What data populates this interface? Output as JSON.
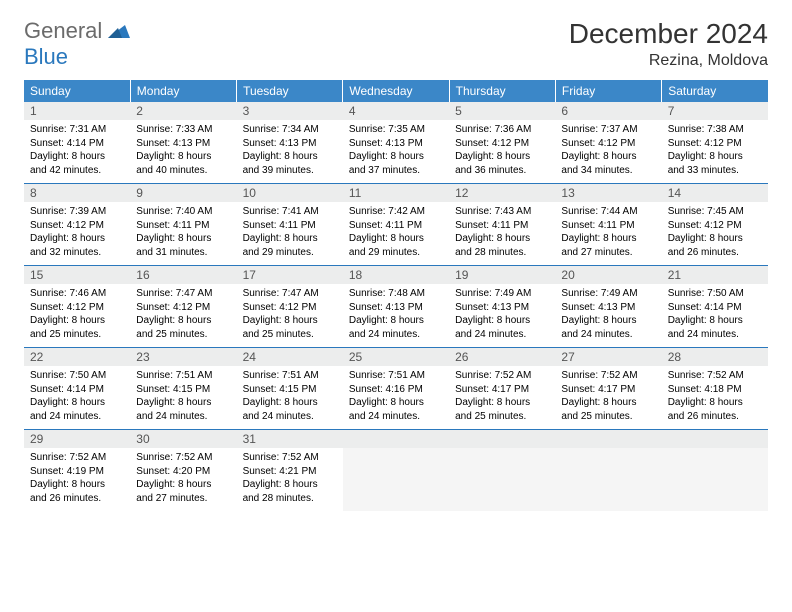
{
  "logo": {
    "general": "General",
    "blue": "Blue"
  },
  "title": "December 2024",
  "location": "Rezina, Moldova",
  "weekdays": [
    "Sunday",
    "Monday",
    "Tuesday",
    "Wednesday",
    "Thursday",
    "Friday",
    "Saturday"
  ],
  "colors": {
    "header_bg": "#3b87c8",
    "header_text": "#ffffff",
    "daynum_bg": "#eceded",
    "divider": "#2a78bd",
    "logo_gray": "#6b6b6b",
    "logo_blue": "#2a78bd"
  },
  "weeks": [
    [
      {
        "day": "1",
        "sunrise": "Sunrise: 7:31 AM",
        "sunset": "Sunset: 4:14 PM",
        "daylight": "Daylight: 8 hours and 42 minutes."
      },
      {
        "day": "2",
        "sunrise": "Sunrise: 7:33 AM",
        "sunset": "Sunset: 4:13 PM",
        "daylight": "Daylight: 8 hours and 40 minutes."
      },
      {
        "day": "3",
        "sunrise": "Sunrise: 7:34 AM",
        "sunset": "Sunset: 4:13 PM",
        "daylight": "Daylight: 8 hours and 39 minutes."
      },
      {
        "day": "4",
        "sunrise": "Sunrise: 7:35 AM",
        "sunset": "Sunset: 4:13 PM",
        "daylight": "Daylight: 8 hours and 37 minutes."
      },
      {
        "day": "5",
        "sunrise": "Sunrise: 7:36 AM",
        "sunset": "Sunset: 4:12 PM",
        "daylight": "Daylight: 8 hours and 36 minutes."
      },
      {
        "day": "6",
        "sunrise": "Sunrise: 7:37 AM",
        "sunset": "Sunset: 4:12 PM",
        "daylight": "Daylight: 8 hours and 34 minutes."
      },
      {
        "day": "7",
        "sunrise": "Sunrise: 7:38 AM",
        "sunset": "Sunset: 4:12 PM",
        "daylight": "Daylight: 8 hours and 33 minutes."
      }
    ],
    [
      {
        "day": "8",
        "sunrise": "Sunrise: 7:39 AM",
        "sunset": "Sunset: 4:12 PM",
        "daylight": "Daylight: 8 hours and 32 minutes."
      },
      {
        "day": "9",
        "sunrise": "Sunrise: 7:40 AM",
        "sunset": "Sunset: 4:11 PM",
        "daylight": "Daylight: 8 hours and 31 minutes."
      },
      {
        "day": "10",
        "sunrise": "Sunrise: 7:41 AM",
        "sunset": "Sunset: 4:11 PM",
        "daylight": "Daylight: 8 hours and 29 minutes."
      },
      {
        "day": "11",
        "sunrise": "Sunrise: 7:42 AM",
        "sunset": "Sunset: 4:11 PM",
        "daylight": "Daylight: 8 hours and 29 minutes."
      },
      {
        "day": "12",
        "sunrise": "Sunrise: 7:43 AM",
        "sunset": "Sunset: 4:11 PM",
        "daylight": "Daylight: 8 hours and 28 minutes."
      },
      {
        "day": "13",
        "sunrise": "Sunrise: 7:44 AM",
        "sunset": "Sunset: 4:11 PM",
        "daylight": "Daylight: 8 hours and 27 minutes."
      },
      {
        "day": "14",
        "sunrise": "Sunrise: 7:45 AM",
        "sunset": "Sunset: 4:12 PM",
        "daylight": "Daylight: 8 hours and 26 minutes."
      }
    ],
    [
      {
        "day": "15",
        "sunrise": "Sunrise: 7:46 AM",
        "sunset": "Sunset: 4:12 PM",
        "daylight": "Daylight: 8 hours and 25 minutes."
      },
      {
        "day": "16",
        "sunrise": "Sunrise: 7:47 AM",
        "sunset": "Sunset: 4:12 PM",
        "daylight": "Daylight: 8 hours and 25 minutes."
      },
      {
        "day": "17",
        "sunrise": "Sunrise: 7:47 AM",
        "sunset": "Sunset: 4:12 PM",
        "daylight": "Daylight: 8 hours and 25 minutes."
      },
      {
        "day": "18",
        "sunrise": "Sunrise: 7:48 AM",
        "sunset": "Sunset: 4:13 PM",
        "daylight": "Daylight: 8 hours and 24 minutes."
      },
      {
        "day": "19",
        "sunrise": "Sunrise: 7:49 AM",
        "sunset": "Sunset: 4:13 PM",
        "daylight": "Daylight: 8 hours and 24 minutes."
      },
      {
        "day": "20",
        "sunrise": "Sunrise: 7:49 AM",
        "sunset": "Sunset: 4:13 PM",
        "daylight": "Daylight: 8 hours and 24 minutes."
      },
      {
        "day": "21",
        "sunrise": "Sunrise: 7:50 AM",
        "sunset": "Sunset: 4:14 PM",
        "daylight": "Daylight: 8 hours and 24 minutes."
      }
    ],
    [
      {
        "day": "22",
        "sunrise": "Sunrise: 7:50 AM",
        "sunset": "Sunset: 4:14 PM",
        "daylight": "Daylight: 8 hours and 24 minutes."
      },
      {
        "day": "23",
        "sunrise": "Sunrise: 7:51 AM",
        "sunset": "Sunset: 4:15 PM",
        "daylight": "Daylight: 8 hours and 24 minutes."
      },
      {
        "day": "24",
        "sunrise": "Sunrise: 7:51 AM",
        "sunset": "Sunset: 4:15 PM",
        "daylight": "Daylight: 8 hours and 24 minutes."
      },
      {
        "day": "25",
        "sunrise": "Sunrise: 7:51 AM",
        "sunset": "Sunset: 4:16 PM",
        "daylight": "Daylight: 8 hours and 24 minutes."
      },
      {
        "day": "26",
        "sunrise": "Sunrise: 7:52 AM",
        "sunset": "Sunset: 4:17 PM",
        "daylight": "Daylight: 8 hours and 25 minutes."
      },
      {
        "day": "27",
        "sunrise": "Sunrise: 7:52 AM",
        "sunset": "Sunset: 4:17 PM",
        "daylight": "Daylight: 8 hours and 25 minutes."
      },
      {
        "day": "28",
        "sunrise": "Sunrise: 7:52 AM",
        "sunset": "Sunset: 4:18 PM",
        "daylight": "Daylight: 8 hours and 26 minutes."
      }
    ],
    [
      {
        "day": "29",
        "sunrise": "Sunrise: 7:52 AM",
        "sunset": "Sunset: 4:19 PM",
        "daylight": "Daylight: 8 hours and 26 minutes."
      },
      {
        "day": "30",
        "sunrise": "Sunrise: 7:52 AM",
        "sunset": "Sunset: 4:20 PM",
        "daylight": "Daylight: 8 hours and 27 minutes."
      },
      {
        "day": "31",
        "sunrise": "Sunrise: 7:52 AM",
        "sunset": "Sunset: 4:21 PM",
        "daylight": "Daylight: 8 hours and 28 minutes."
      },
      null,
      null,
      null,
      null
    ]
  ]
}
